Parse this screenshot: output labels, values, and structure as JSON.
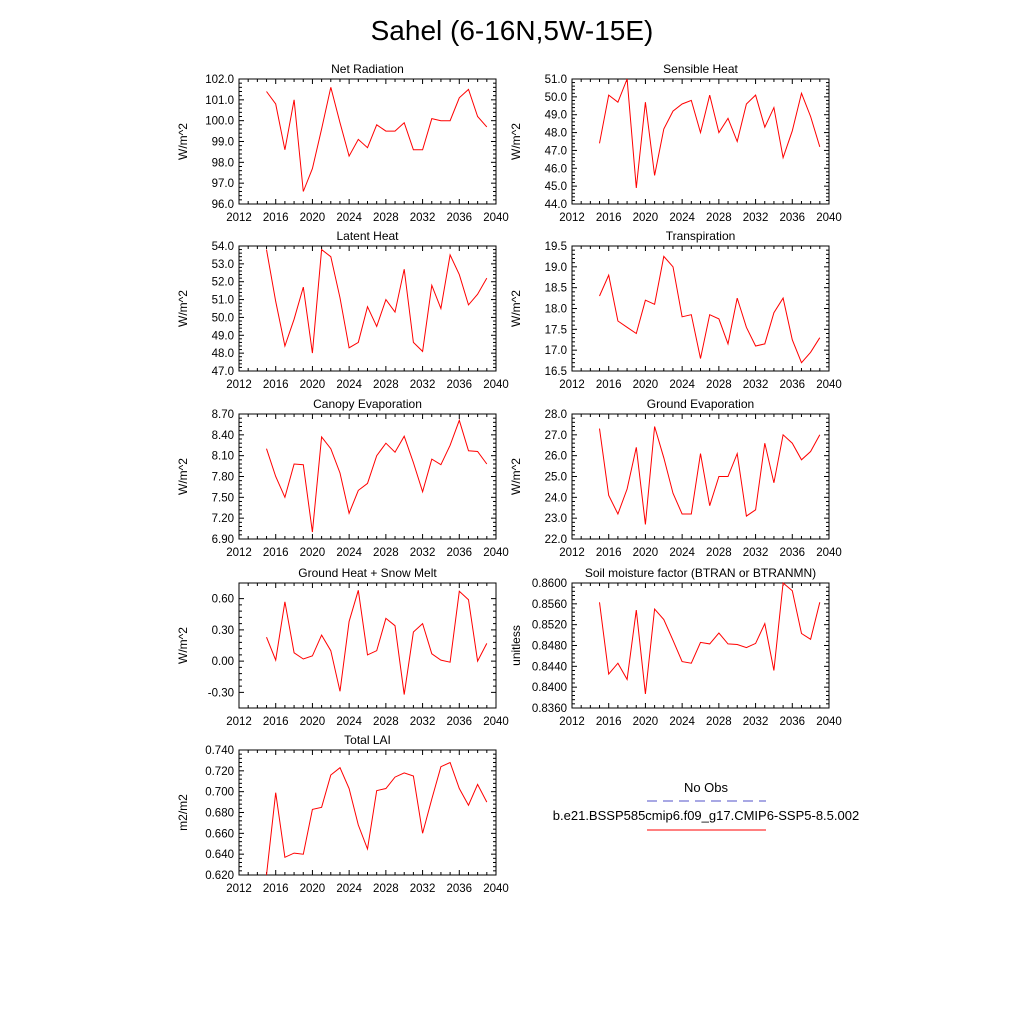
{
  "figure_title": "Sahel (6-16N,5W-15E)",
  "legend": {
    "obs_label": "No Obs",
    "obs_color": "#5050c8",
    "model_label": "b.e21.BSSP585cmip6.f09_g17.CMIP6-SSP5-8.5.002",
    "model_color": "#ff0000"
  },
  "chart_data": [
    {
      "type": "line",
      "title": "Net Radiation",
      "ylabel": "W/m^2",
      "xlim": [
        2012,
        2040
      ],
      "ylim": [
        96,
        102
      ],
      "x_ticks": [
        "2012",
        "2016",
        "2020",
        "2024",
        "2028",
        "2032",
        "2036",
        "2040"
      ],
      "y_ticks": [
        "96.0",
        "97.0",
        "98.0",
        "99.0",
        "100.0",
        "101.0",
        "102.0"
      ],
      "x": [
        2015,
        2016,
        2017,
        2018,
        2019,
        2020,
        2021,
        2022,
        2023,
        2024,
        2025,
        2026,
        2027,
        2028,
        2029,
        2030,
        2031,
        2032,
        2033,
        2034,
        2035,
        2036,
        2037,
        2038,
        2039
      ],
      "values": [
        101.4,
        100.8,
        98.6,
        101.0,
        96.6,
        97.7,
        99.6,
        101.6,
        99.9,
        98.3,
        99.1,
        98.7,
        99.8,
        99.5,
        99.5,
        99.9,
        98.6,
        98.6,
        100.1,
        100.0,
        100.0,
        101.1,
        101.5,
        100.2,
        99.7
      ]
    },
    {
      "type": "line",
      "title": "Sensible Heat",
      "ylabel": "W/m^2",
      "xlim": [
        2012,
        2040
      ],
      "ylim": [
        44,
        51
      ],
      "x_ticks": [
        "2012",
        "2016",
        "2020",
        "2024",
        "2028",
        "2032",
        "2036",
        "2040"
      ],
      "y_ticks": [
        "44.0",
        "45.0",
        "46.0",
        "47.0",
        "48.0",
        "49.0",
        "50.0",
        "51.0"
      ],
      "x": [
        2015,
        2016,
        2017,
        2018,
        2019,
        2020,
        2021,
        2022,
        2023,
        2024,
        2025,
        2026,
        2027,
        2028,
        2029,
        2030,
        2031,
        2032,
        2033,
        2034,
        2035,
        2036,
        2037,
        2038,
        2039
      ],
      "values": [
        47.4,
        50.1,
        49.7,
        51.0,
        44.9,
        49.7,
        45.6,
        48.2,
        49.2,
        49.6,
        49.8,
        48.0,
        50.1,
        48.0,
        48.8,
        47.5,
        49.6,
        50.1,
        48.3,
        49.4,
        46.6,
        48.1,
        50.2,
        48.9,
        47.2
      ]
    },
    {
      "type": "line",
      "title": "Latent Heat",
      "ylabel": "W/m^2",
      "xlim": [
        2012,
        2040
      ],
      "ylim": [
        47,
        54
      ],
      "x_ticks": [
        "2012",
        "2016",
        "2020",
        "2024",
        "2028",
        "2032",
        "2036",
        "2040"
      ],
      "y_ticks": [
        "47.0",
        "48.0",
        "49.0",
        "50.0",
        "51.0",
        "52.0",
        "53.0",
        "54.0"
      ],
      "x": [
        2015,
        2016,
        2017,
        2018,
        2019,
        2020,
        2021,
        2022,
        2023,
        2024,
        2025,
        2026,
        2027,
        2028,
        2029,
        2030,
        2031,
        2032,
        2033,
        2034,
        2035,
        2036,
        2037,
        2038,
        2039
      ],
      "values": [
        53.8,
        50.9,
        48.4,
        49.9,
        51.7,
        48.0,
        53.8,
        53.4,
        51.1,
        48.3,
        48.6,
        50.6,
        49.5,
        51.0,
        50.3,
        52.7,
        48.6,
        48.1,
        51.8,
        50.5,
        53.5,
        52.4,
        50.7,
        51.3,
        52.2
      ]
    },
    {
      "type": "line",
      "title": "Transpiration",
      "ylabel": "W/m^2",
      "xlim": [
        2012,
        2040
      ],
      "ylim": [
        16.5,
        19.5
      ],
      "x_ticks": [
        "2012",
        "2016",
        "2020",
        "2024",
        "2028",
        "2032",
        "2036",
        "2040"
      ],
      "y_ticks": [
        "16.5",
        "17.0",
        "17.5",
        "18.0",
        "18.5",
        "19.0",
        "19.5"
      ],
      "x": [
        2015,
        2016,
        2017,
        2018,
        2019,
        2020,
        2021,
        2022,
        2023,
        2024,
        2025,
        2026,
        2027,
        2028,
        2029,
        2030,
        2031,
        2032,
        2033,
        2034,
        2035,
        2036,
        2037,
        2038,
        2039
      ],
      "values": [
        18.3,
        18.8,
        17.7,
        17.55,
        17.4,
        18.2,
        18.1,
        19.25,
        19.0,
        17.8,
        17.85,
        16.8,
        17.85,
        17.75,
        17.15,
        18.25,
        17.55,
        17.1,
        17.15,
        17.9,
        18.25,
        17.25,
        16.7,
        16.95,
        17.3
      ]
    },
    {
      "type": "line",
      "title": "Canopy Evaporation",
      "ylabel": "W/m^2",
      "xlim": [
        2012,
        2040
      ],
      "ylim": [
        6.9,
        8.7
      ],
      "x_ticks": [
        "2012",
        "2016",
        "2020",
        "2024",
        "2028",
        "2032",
        "2036",
        "2040"
      ],
      "y_ticks": [
        "6.90",
        "7.20",
        "7.50",
        "7.80",
        "8.10",
        "8.40",
        "8.70"
      ],
      "x": [
        2015,
        2016,
        2017,
        2018,
        2019,
        2020,
        2021,
        2022,
        2023,
        2024,
        2025,
        2026,
        2027,
        2028,
        2029,
        2030,
        2031,
        2032,
        2033,
        2034,
        2035,
        2036,
        2037,
        2038,
        2039
      ],
      "values": [
        8.2,
        7.8,
        7.5,
        7.98,
        7.97,
        7.0,
        8.37,
        8.2,
        7.85,
        7.27,
        7.6,
        7.7,
        8.1,
        8.28,
        8.15,
        8.38,
        8.0,
        7.58,
        8.05,
        7.97,
        8.25,
        8.61,
        8.17,
        8.16,
        7.98
      ]
    },
    {
      "type": "line",
      "title": "Ground Evaporation",
      "ylabel": "W/m^2",
      "xlim": [
        2012,
        2040
      ],
      "ylim": [
        22,
        28
      ],
      "x_ticks": [
        "2012",
        "2016",
        "2020",
        "2024",
        "2028",
        "2032",
        "2036",
        "2040"
      ],
      "y_ticks": [
        "22.0",
        "23.0",
        "24.0",
        "25.0",
        "26.0",
        "27.0",
        "28.0"
      ],
      "x": [
        2015,
        2016,
        2017,
        2018,
        2019,
        2020,
        2021,
        2022,
        2023,
        2024,
        2025,
        2026,
        2027,
        2028,
        2029,
        2030,
        2031,
        2032,
        2033,
        2034,
        2035,
        2036,
        2037,
        2038,
        2039
      ],
      "values": [
        27.3,
        24.1,
        23.2,
        24.4,
        26.4,
        22.7,
        27.4,
        25.9,
        24.2,
        23.2,
        23.2,
        26.1,
        23.6,
        25.0,
        25.0,
        26.1,
        23.1,
        23.4,
        26.6,
        24.7,
        27.0,
        26.6,
        25.8,
        26.2,
        27.0
      ]
    },
    {
      "type": "line",
      "title": "Ground Heat + Snow Melt",
      "ylabel": "W/m^2",
      "xlim": [
        2012,
        2040
      ],
      "ylim": [
        -0.45,
        0.75
      ],
      "x_ticks": [
        "2012",
        "2016",
        "2020",
        "2024",
        "2028",
        "2032",
        "2036",
        "2040"
      ],
      "y_ticks": [
        "-0.30",
        "0.00",
        "0.30",
        "0.60"
      ],
      "y_tick_values": [
        -0.3,
        0.0,
        0.3,
        0.6
      ],
      "x": [
        2015,
        2016,
        2017,
        2018,
        2019,
        2020,
        2021,
        2022,
        2023,
        2024,
        2025,
        2026,
        2027,
        2028,
        2029,
        2030,
        2031,
        2032,
        2033,
        2034,
        2035,
        2036,
        2037,
        2038,
        2039
      ],
      "values": [
        0.23,
        0.01,
        0.57,
        0.08,
        0.02,
        0.05,
        0.25,
        0.1,
        -0.29,
        0.38,
        0.68,
        0.06,
        0.1,
        0.41,
        0.34,
        -0.32,
        0.28,
        0.36,
        0.07,
        0.01,
        -0.01,
        0.67,
        0.59,
        0.0,
        0.17
      ]
    },
    {
      "type": "line",
      "title": "Soil moisture factor (BTRAN or BTRANMN)",
      "ylabel": "unitless",
      "xlim": [
        2012,
        2040
      ],
      "ylim": [
        0.836,
        0.86
      ],
      "x_ticks": [
        "2012",
        "2016",
        "2020",
        "2024",
        "2028",
        "2032",
        "2036",
        "2040"
      ],
      "y_ticks": [
        "0.8360",
        "0.8400",
        "0.8440",
        "0.8480",
        "0.8520",
        "0.8560",
        "0.8600"
      ],
      "x": [
        2015,
        2016,
        2017,
        2018,
        2019,
        2020,
        2021,
        2022,
        2023,
        2024,
        2025,
        2026,
        2027,
        2028,
        2029,
        2030,
        2031,
        2032,
        2033,
        2034,
        2035,
        2036,
        2037,
        2038,
        2039
      ],
      "values": [
        0.8563,
        0.8425,
        0.8446,
        0.8415,
        0.8548,
        0.8387,
        0.855,
        0.853,
        0.849,
        0.8449,
        0.8446,
        0.8486,
        0.8483,
        0.8504,
        0.8483,
        0.8482,
        0.8476,
        0.8484,
        0.8522,
        0.8432,
        0.86,
        0.8585,
        0.8503,
        0.8492,
        0.8563
      ]
    },
    {
      "type": "line",
      "title": "Total LAI",
      "ylabel": "m2/m2",
      "xlim": [
        2012,
        2040
      ],
      "ylim": [
        0.62,
        0.74
      ],
      "x_ticks": [
        "2012",
        "2016",
        "2020",
        "2024",
        "2028",
        "2032",
        "2036",
        "2040"
      ],
      "y_ticks": [
        "0.620",
        "0.640",
        "0.660",
        "0.680",
        "0.700",
        "0.720",
        "0.740"
      ],
      "x": [
        2015,
        2016,
        2017,
        2018,
        2019,
        2020,
        2021,
        2022,
        2023,
        2024,
        2025,
        2026,
        2027,
        2028,
        2029,
        2030,
        2031,
        2032,
        2033,
        2034,
        2035,
        2036,
        2037,
        2038,
        2039
      ],
      "values": [
        0.62,
        0.699,
        0.637,
        0.641,
        0.64,
        0.683,
        0.685,
        0.716,
        0.723,
        0.703,
        0.668,
        0.645,
        0.701,
        0.703,
        0.714,
        0.718,
        0.715,
        0.66,
        0.693,
        0.724,
        0.728,
        0.703,
        0.687,
        0.707,
        0.69
      ]
    }
  ]
}
